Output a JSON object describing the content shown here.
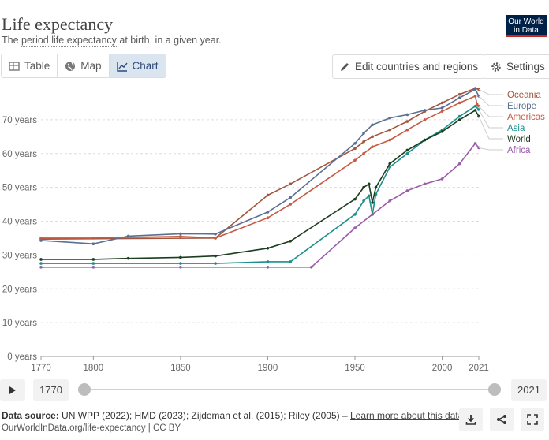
{
  "header": {
    "title": "Life expectancy",
    "subtitle_pre": "The ",
    "subtitle_link": "period life expectancy",
    "subtitle_post": " at birth, in a given year.",
    "logo_line1": "Our World",
    "logo_line2": "in Data"
  },
  "tabs": [
    {
      "label": "Table",
      "icon": "table-icon"
    },
    {
      "label": "Map",
      "icon": "globe-icon"
    },
    {
      "label": "Chart",
      "icon": "line-chart-icon",
      "active": true
    }
  ],
  "toolbar": {
    "edit_label": "Edit countries and regions",
    "settings_label": "Settings"
  },
  "timeline": {
    "start_label": "1770",
    "end_label": "2021",
    "start_value": 1770,
    "end_value": 2021
  },
  "footer": {
    "source_label": "Data source:",
    "source_text": " UN WPP (2022); HMD (2023); Zijdeman et al. (2015); Riley (2005) – ",
    "learn_more": "Learn more about this data",
    "url": "OurWorldInData.org/life-expectancy | CC BY"
  },
  "chart_data": {
    "type": "line",
    "xlim": [
      1770,
      2021
    ],
    "ylim": [
      0,
      80
    ],
    "x_ticks": [
      1770,
      1800,
      1850,
      1900,
      1950,
      2000,
      2021
    ],
    "y_ticks": [
      {
        "value": 0,
        "label": "0 years"
      },
      {
        "value": 10,
        "label": "10 years"
      },
      {
        "value": 20,
        "label": "20 years"
      },
      {
        "value": 30,
        "label": "30 years"
      },
      {
        "value": 40,
        "label": "40 years"
      },
      {
        "value": 50,
        "label": "50 years"
      },
      {
        "value": 60,
        "label": "60 years"
      },
      {
        "value": 70,
        "label": "70 years"
      }
    ],
    "grid": true,
    "legend": "right",
    "series": [
      {
        "name": "Oceania",
        "color": "#a2553c",
        "points": [
          [
            1770,
            34.7
          ],
          [
            1870,
            35
          ],
          [
            1900,
            47.7
          ],
          [
            1913,
            51
          ],
          [
            1950,
            61.5
          ],
          [
            1955,
            63.5
          ],
          [
            1960,
            65
          ],
          [
            1970,
            67
          ],
          [
            1980,
            69.5
          ],
          [
            1990,
            72.5
          ],
          [
            2000,
            75
          ],
          [
            2010,
            77.5
          ],
          [
            2019,
            79.3
          ],
          [
            2021,
            79
          ]
        ]
      },
      {
        "name": "Europe",
        "color": "#5a7093",
        "points": [
          [
            1770,
            34.3
          ],
          [
            1800,
            33.3
          ],
          [
            1820,
            35.6
          ],
          [
            1850,
            36.3
          ],
          [
            1870,
            36.2
          ],
          [
            1900,
            42.7
          ],
          [
            1913,
            47
          ],
          [
            1950,
            63
          ],
          [
            1955,
            66
          ],
          [
            1960,
            68.5
          ],
          [
            1970,
            70.5
          ],
          [
            1980,
            71.5
          ],
          [
            1990,
            72.8
          ],
          [
            2000,
            73.5
          ],
          [
            2010,
            76.5
          ],
          [
            2019,
            79
          ],
          [
            2021,
            77
          ]
        ]
      },
      {
        "name": "Americas",
        "color": "#c75a42",
        "points": [
          [
            1770,
            35
          ],
          [
            1800,
            35
          ],
          [
            1850,
            35.5
          ],
          [
            1870,
            35
          ],
          [
            1900,
            41
          ],
          [
            1913,
            45
          ],
          [
            1950,
            58
          ],
          [
            1955,
            60
          ],
          [
            1960,
            62
          ],
          [
            1970,
            64
          ],
          [
            1980,
            67
          ],
          [
            1990,
            70
          ],
          [
            2000,
            72.5
          ],
          [
            2010,
            75
          ],
          [
            2019,
            77
          ],
          [
            2020,
            74.5
          ],
          [
            2021,
            74
          ]
        ]
      },
      {
        "name": "Asia",
        "color": "#1d8f8b",
        "points": [
          [
            1770,
            27.5
          ],
          [
            1800,
            27.5
          ],
          [
            1850,
            27.5
          ],
          [
            1870,
            27.5
          ],
          [
            1900,
            28
          ],
          [
            1913,
            28
          ],
          [
            1950,
            42
          ],
          [
            1955,
            46
          ],
          [
            1958,
            47.5
          ],
          [
            1960,
            42
          ],
          [
            1962,
            48
          ],
          [
            1970,
            56
          ],
          [
            1980,
            60
          ],
          [
            1990,
            64
          ],
          [
            2000,
            67
          ],
          [
            2010,
            71
          ],
          [
            2019,
            74
          ],
          [
            2021,
            73
          ]
        ]
      },
      {
        "name": "World",
        "color": "#1c3d1f",
        "points": [
          [
            1770,
            28.7
          ],
          [
            1800,
            28.7
          ],
          [
            1820,
            29
          ],
          [
            1850,
            29.3
          ],
          [
            1870,
            29.7
          ],
          [
            1900,
            32
          ],
          [
            1913,
            34.1
          ],
          [
            1950,
            46.5
          ],
          [
            1955,
            50
          ],
          [
            1958,
            51
          ],
          [
            1960,
            45.5
          ],
          [
            1962,
            50
          ],
          [
            1970,
            57
          ],
          [
            1980,
            61
          ],
          [
            1990,
            64
          ],
          [
            2000,
            66.5
          ],
          [
            2010,
            70
          ],
          [
            2019,
            72.8
          ],
          [
            2021,
            71
          ]
        ]
      },
      {
        "name": "Africa",
        "color": "#9a5ca8",
        "points": [
          [
            1770,
            26.4
          ],
          [
            1800,
            26.4
          ],
          [
            1850,
            26.4
          ],
          [
            1900,
            26.4
          ],
          [
            1925,
            26.4
          ],
          [
            1950,
            38
          ],
          [
            1960,
            42
          ],
          [
            1970,
            46
          ],
          [
            1980,
            49
          ],
          [
            1990,
            51
          ],
          [
            2000,
            52.5
          ],
          [
            2010,
            57
          ],
          [
            2019,
            63
          ],
          [
            2021,
            61.7
          ]
        ]
      }
    ]
  }
}
